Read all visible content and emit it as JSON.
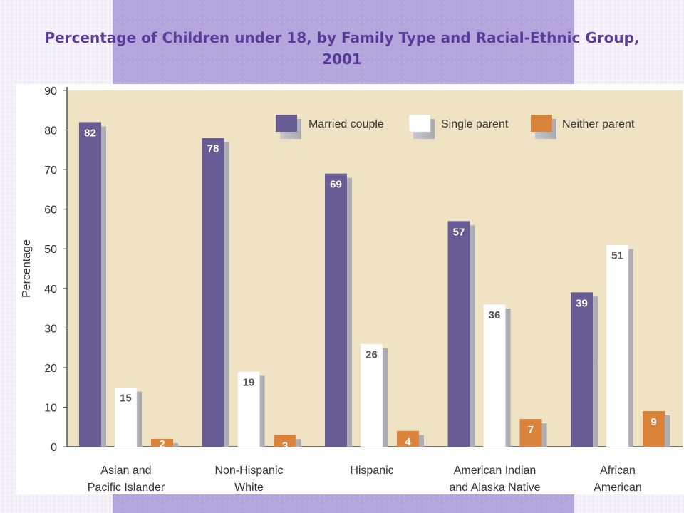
{
  "slide": {
    "title": "Percentage of Children under 18, by Family Type and Racial-Ethnic Group, 2001"
  },
  "colors": {
    "married_couple": "#675c94",
    "single_parent": "#ffffff",
    "neither_parent": "#d9833b",
    "shadow": "#bcbcc4",
    "plot_bg": "#f0e3c4",
    "axis": "#555555"
  },
  "chart_data": {
    "type": "bar",
    "title": "Percentage of Children under 18, by Family Type and Racial-Ethnic Group, 2001",
    "ylabel": "Percentage",
    "xlabel": "",
    "ylim": [
      0,
      90
    ],
    "yticks": [
      0,
      10,
      20,
      30,
      40,
      50,
      60,
      70,
      80,
      90
    ],
    "grid": false,
    "legend_position": "top-right",
    "categories": [
      [
        "Asian and",
        "Pacific Islander"
      ],
      [
        "Non-Hispanic",
        "White"
      ],
      [
        "Hispanic"
      ],
      [
        "American Indian",
        "and Alaska Native"
      ],
      [
        "African",
        "American"
      ]
    ],
    "series": [
      {
        "name": "Married couple",
        "values": [
          82,
          78,
          69,
          57,
          39
        ]
      },
      {
        "name": "Single parent",
        "values": [
          15,
          19,
          26,
          36,
          51
        ]
      },
      {
        "name": "Neither parent",
        "values": [
          2,
          3,
          4,
          7,
          9
        ]
      }
    ]
  }
}
